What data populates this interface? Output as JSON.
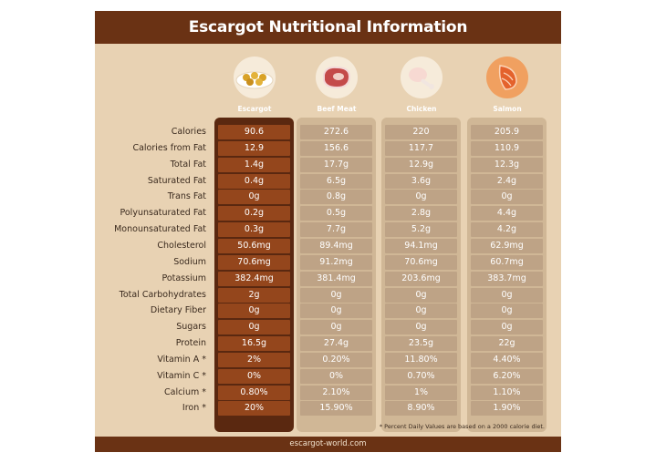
{
  "title": "Escargot Nutritional Information",
  "footer": "escargot-world.com",
  "note": "* Percent Daily Values are based on a 2000 calorie diet.",
  "foods": [
    {
      "name": "Escargot",
      "icon": "escargot-plate-icon"
    },
    {
      "name": "Beef Meat",
      "icon": "beef-steak-icon"
    },
    {
      "name": "Chicken",
      "icon": "chicken-leg-icon"
    },
    {
      "name": "Salmon",
      "icon": "salmon-fillet-icon"
    }
  ],
  "rows": [
    {
      "label": "Calories",
      "values": [
        "90.6",
        "272.6",
        "220",
        "205.9"
      ]
    },
    {
      "label": "Calories from Fat",
      "values": [
        "12.9",
        "156.6",
        "117.7",
        "110.9"
      ]
    },
    {
      "label": "Total Fat",
      "values": [
        "1.4g",
        "17.7g",
        "12.9g",
        "12.3g"
      ]
    },
    {
      "label": "Saturated Fat",
      "values": [
        "0.4g",
        "6.5g",
        "3.6g",
        "2.4g"
      ]
    },
    {
      "label": "Trans Fat",
      "values": [
        "0g",
        "0.8g",
        "0g",
        "0g"
      ]
    },
    {
      "label": "Polyunsaturated Fat",
      "values": [
        "0.2g",
        "0.5g",
        "2.8g",
        "4.4g"
      ]
    },
    {
      "label": "Monounsaturated Fat",
      "values": [
        "0.3g",
        "7.7g",
        "5.2g",
        "4.2g"
      ]
    },
    {
      "label": "Cholesterol",
      "values": [
        "50.6mg",
        "89.4mg",
        "94.1mg",
        "62.9mg"
      ]
    },
    {
      "label": "Sodium",
      "values": [
        "70.6mg",
        "91.2mg",
        "70.6mg",
        "60.7mg"
      ]
    },
    {
      "label": "Potassium",
      "values": [
        "382.4mg",
        "381.4mg",
        "203.6mg",
        "383.7mg"
      ]
    },
    {
      "label": "Total Carbohydrates",
      "values": [
        "2g",
        "0g",
        "0g",
        "0g"
      ]
    },
    {
      "label": "Dietary Fiber",
      "values": [
        "0g",
        "0g",
        "0g",
        "0g"
      ]
    },
    {
      "label": "Sugars",
      "values": [
        "0g",
        "0g",
        "0g",
        "0g"
      ]
    },
    {
      "label": "Protein",
      "values": [
        "16.5g",
        "27.4g",
        "23.5g",
        "22g"
      ]
    },
    {
      "label": "Vitamin A *",
      "values": [
        "2%",
        "0.20%",
        "11.80%",
        "4.40%"
      ]
    },
    {
      "label": "Vitamin C *",
      "values": [
        "0%",
        "0%",
        "0.70%",
        "6.20%"
      ]
    },
    {
      "label": "Calcium *",
      "values": [
        "0.80%",
        "2.10%",
        "1%",
        "1.10%"
      ]
    },
    {
      "label": "Iron *",
      "values": [
        "20%",
        "15.90%",
        "8.90%",
        "1.90%"
      ]
    }
  ],
  "colors": {
    "header": "#6a3214",
    "background": "#e8d2b3",
    "escargot_column": "#5a2810",
    "escargot_cell": "#94461c",
    "other_cell": "#bea386"
  }
}
